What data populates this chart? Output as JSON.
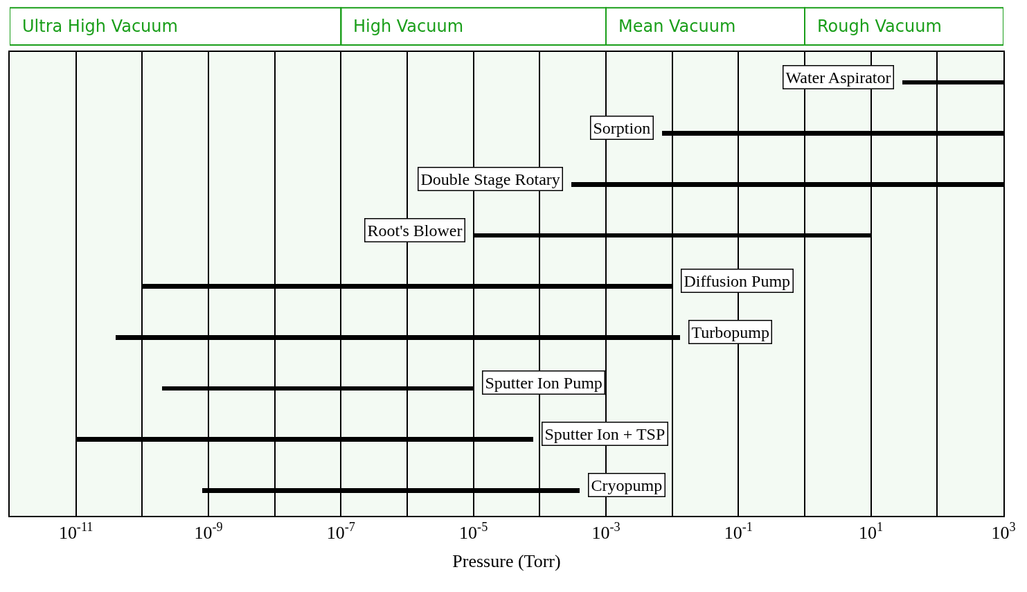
{
  "chart_data": {
    "type": "bar",
    "orientation": "horizontal",
    "xlabel": "Pressure (Torr)",
    "log": "x",
    "grid": "x",
    "tick_labels": "x",
    "categories": [
      "Water Aspirator",
      "Sorption",
      "Double Stage Rotary",
      "Root's Blower",
      "Diffusion Pump",
      "Turbopump",
      "Sputter Ion Pump",
      "Sputter Ion + TSP",
      "Cryopump"
    ],
    "base": [
      30,
      0.007,
      0.0003,
      1e-05,
      1e-10,
      4e-11,
      2e-10,
      1e-11,
      8e-10
    ],
    "values": [
      970,
      999.993,
      999.9997,
      9.99999,
      0.0099999999,
      0.01299999996,
      9.9998e-06,
      7.999999e-05,
      0.0003999992
    ],
    "color": "#000000",
    "xlim": [
      1e-12,
      1000
    ],
    "xticks": [
      {
        "value": 1e-11,
        "label": "10$^{-11}$"
      },
      {
        "value": 1e-10,
        "label": null
      },
      {
        "value": 1e-09,
        "label": "10$^{-9}$"
      },
      {
        "value": 1e-08,
        "label": null
      },
      {
        "value": 1e-07,
        "label": "10$^{-7}$"
      },
      {
        "value": 1e-06,
        "label": null
      },
      {
        "value": 1e-05,
        "label": "10$^{-5}$"
      },
      {
        "value": 0.0001,
        "label": null
      },
      {
        "value": 0.001,
        "label": "10$^{-3}$"
      },
      {
        "value": 0.01,
        "label": null
      },
      {
        "value": 0.1,
        "label": "10$^{-1}$"
      },
      {
        "value": 1,
        "label": null
      },
      {
        "value": 10,
        "label": "10$^{1}$"
      },
      {
        "value": 100,
        "label": null
      },
      {
        "value": 1000,
        "label": "10$^{3}$"
      }
    ],
    "bands": [
      {
        "axis": "x",
        "from": 1e-12,
        "to": 1e-07,
        "label": "Ultra High Vacuum",
        "color": "#1a9e1a"
      },
      {
        "axis": "x",
        "from": 1e-07,
        "to": 0.001,
        "label": "High Vacuum",
        "color": "#1a9e1a"
      },
      {
        "axis": "x",
        "from": 0.001,
        "to": 1,
        "label": "Mean Vacuum",
        "color": "#1a9e1a"
      },
      {
        "axis": "x",
        "from": 1,
        "to": 1000,
        "label": "Rough Vacuum",
        "color": "#1a9e1a"
      }
    ]
  }
}
